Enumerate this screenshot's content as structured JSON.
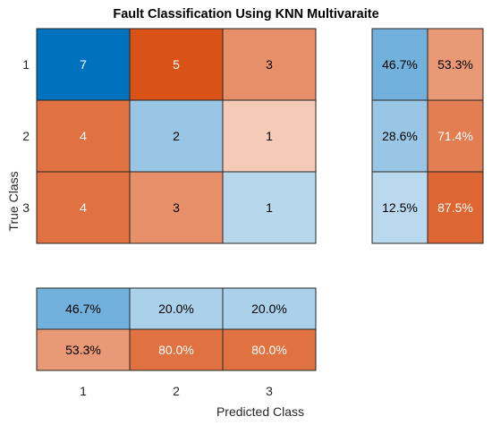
{
  "chart_data": {
    "type": "heatmap",
    "title": "Fault Classification Using KNN Multivaraite",
    "xlabel": "Predicted Class",
    "ylabel": "True Class",
    "row_labels": [
      "1",
      "2",
      "3"
    ],
    "col_labels": [
      "1",
      "2",
      "3"
    ],
    "matrix": [
      [
        7,
        5,
        3
      ],
      [
        4,
        2,
        1
      ],
      [
        4,
        3,
        1
      ]
    ],
    "row_summary": [
      [
        "46.7%",
        "53.3%"
      ],
      [
        "28.6%",
        "71.4%"
      ],
      [
        "12.5%",
        "87.5%"
      ]
    ],
    "column_summary": [
      [
        "46.7%",
        "20.0%",
        "20.0%"
      ],
      [
        "53.3%",
        "80.0%",
        "80.0%"
      ]
    ],
    "colors": {
      "correct_dark": "#0072BD",
      "incorrect_dark": "#D95319",
      "correct_light": "#D6E8F5",
      "incorrect_light": "#FCE8DF"
    }
  }
}
